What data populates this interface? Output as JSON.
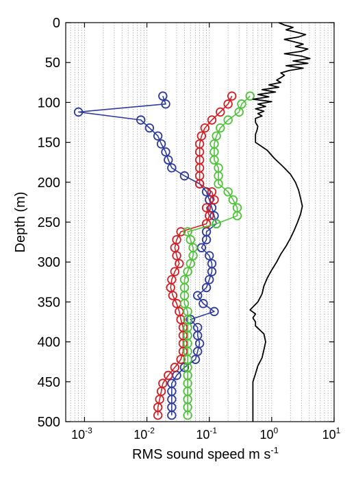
{
  "chart_data": {
    "type": "line",
    "title": "",
    "xlabel_main": "RMS sound speed m s",
    "xlabel_sup": "-1",
    "ylabel": "Depth (m)",
    "x_scale": "log",
    "xlim": [
      0.0005,
      10
    ],
    "ylim": [
      500,
      0
    ],
    "y_reversed": true,
    "grid": "vertical minor dotted",
    "x_ticks": [
      {
        "value": 0.001,
        "base": "10",
        "exp": "-3"
      },
      {
        "value": 0.01,
        "base": "10",
        "exp": "-2"
      },
      {
        "value": 0.1,
        "base": "10",
        "exp": "-1"
      },
      {
        "value": 1,
        "base": "10",
        "exp": "0"
      },
      {
        "value": 10,
        "base": "10",
        "exp": "1"
      }
    ],
    "y_ticks": [
      0,
      50,
      100,
      150,
      200,
      250,
      300,
      350,
      400,
      450,
      500
    ],
    "y_tick_labels": [
      "0",
      "50",
      "100",
      "150",
      "200",
      "250",
      "300",
      "350",
      "400",
      "450",
      "500"
    ],
    "series": [
      {
        "color": "#2e3a9a",
        "markers": "circle",
        "depth": [
          92,
          102,
          112,
          122,
          132,
          142,
          152,
          162,
          172,
          182,
          192,
          202,
          212,
          222,
          232,
          242,
          252,
          262,
          272,
          282,
          292,
          302,
          312,
          322,
          332,
          342,
          352,
          362,
          372,
          382,
          392,
          402,
          412,
          422,
          432,
          442,
          452,
          462,
          472,
          482,
          492
        ],
        "x": [
          0.018,
          0.02,
          0.0008,
          0.008,
          0.011,
          0.015,
          0.017,
          0.02,
          0.022,
          0.025,
          0.04,
          0.07,
          0.09,
          0.1,
          0.11,
          0.12,
          0.13,
          0.09,
          0.09,
          0.075,
          0.1,
          0.11,
          0.11,
          0.1,
          0.09,
          0.065,
          0.08,
          0.12,
          0.05,
          0.065,
          0.065,
          0.07,
          0.065,
          0.06,
          0.04,
          0.03,
          0.025,
          0.025,
          0.025,
          0.025,
          0.025
        ]
      },
      {
        "color": "#d11f26",
        "markers": "circle",
        "depth": [
          92,
          102,
          112,
          122,
          132,
          142,
          152,
          162,
          172,
          182,
          192,
          202,
          212,
          222,
          232,
          242,
          252,
          262,
          272,
          282,
          292,
          302,
          312,
          322,
          332,
          342,
          352,
          362,
          372,
          382,
          392,
          402,
          412,
          422,
          432,
          442,
          452,
          462,
          472,
          482,
          492
        ],
        "x": [
          0.23,
          0.2,
          0.15,
          0.11,
          0.085,
          0.075,
          0.07,
          0.07,
          0.07,
          0.07,
          0.07,
          0.07,
          0.11,
          0.12,
          0.09,
          0.1,
          0.09,
          0.035,
          0.03,
          0.028,
          0.03,
          0.033,
          0.028,
          0.025,
          0.024,
          0.026,
          0.03,
          0.033,
          0.035,
          0.038,
          0.038,
          0.038,
          0.038,
          0.035,
          0.028,
          0.022,
          0.018,
          0.017,
          0.016,
          0.015,
          0.015
        ]
      },
      {
        "color": "#4fc23a",
        "markers": "circle",
        "depth": [
          92,
          102,
          112,
          122,
          132,
          142,
          152,
          162,
          172,
          182,
          192,
          202,
          212,
          222,
          232,
          242,
          252,
          262,
          272,
          282,
          292,
          302,
          312,
          322,
          332,
          342,
          352,
          362,
          372,
          382,
          392,
          402,
          412,
          422,
          432,
          442,
          452,
          462,
          472,
          482,
          492
        ],
        "x": [
          0.45,
          0.33,
          0.3,
          0.2,
          0.15,
          0.13,
          0.12,
          0.12,
          0.12,
          0.14,
          0.14,
          0.14,
          0.2,
          0.24,
          0.28,
          0.28,
          0.13,
          0.045,
          0.05,
          0.055,
          0.055,
          0.05,
          0.045,
          0.04,
          0.04,
          0.04,
          0.04,
          0.045,
          0.045,
          0.045,
          0.045,
          0.045,
          0.045,
          0.045,
          0.045,
          0.045,
          0.045,
          0.045,
          0.045,
          0.045,
          0.045
        ]
      },
      {
        "color": "#000000",
        "markers": "none",
        "depth": [
          0,
          3,
          6,
          9,
          12,
          15,
          18,
          21,
          24,
          27,
          30,
          33,
          36,
          39,
          42,
          45,
          48,
          51,
          54,
          57,
          60,
          63,
          66,
          69,
          72,
          75,
          78,
          81,
          84,
          87,
          90,
          93,
          96,
          99,
          102,
          105,
          108,
          111,
          114,
          117,
          120,
          125,
          130,
          135,
          140,
          145,
          150,
          160,
          170,
          180,
          190,
          200,
          210,
          220,
          230,
          240,
          250,
          260,
          270,
          280,
          290,
          300,
          310,
          320,
          330,
          340,
          350,
          360,
          365,
          370,
          375,
          380,
          390,
          400,
          410,
          420,
          430,
          440,
          450,
          460,
          470,
          480,
          490,
          500
        ],
        "x": [
          1.3,
          1.6,
          2.2,
          1.7,
          2.5,
          3.5,
          2.7,
          1.6,
          2.3,
          3.2,
          2.4,
          3.8,
          3.0,
          1.6,
          3.0,
          4.1,
          2.2,
          3.8,
          1.7,
          3.2,
          1.9,
          1.4,
          1.6,
          1.4,
          1.2,
          1.4,
          0.9,
          1.3,
          0.7,
          1.15,
          0.6,
          0.9,
          0.5,
          1.0,
          0.6,
          0.8,
          0.55,
          0.75,
          0.6,
          0.7,
          0.55,
          0.55,
          0.6,
          0.58,
          0.55,
          0.55,
          0.55,
          0.85,
          1.1,
          1.5,
          2.0,
          2.4,
          2.7,
          2.9,
          3.1,
          2.9,
          2.6,
          2.3,
          2.0,
          1.7,
          1.4,
          1.2,
          1.0,
          0.85,
          0.75,
          0.7,
          0.6,
          0.45,
          0.55,
          0.5,
          0.55,
          0.55,
          0.75,
          0.8,
          0.75,
          0.7,
          0.6,
          0.55,
          0.5,
          0.5,
          0.5,
          0.5,
          0.5,
          0.5
        ]
      }
    ]
  }
}
